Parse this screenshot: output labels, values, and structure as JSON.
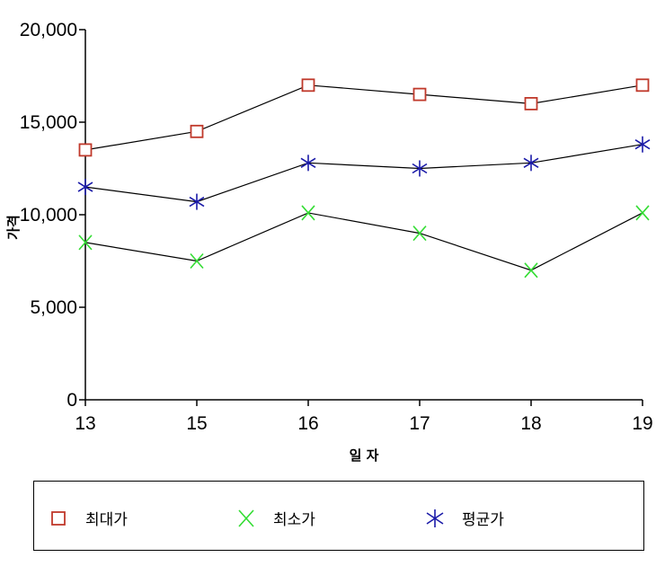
{
  "chart_data": {
    "type": "line",
    "categories": [
      "13",
      "15",
      "16",
      "17",
      "18",
      "19"
    ],
    "xlabel": "일 자",
    "ylabel": "가격",
    "ylim": [
      0,
      20000
    ],
    "yticks": [
      "0",
      "5,000",
      "10,000",
      "15,000",
      "20,000"
    ],
    "ytick_values": [
      0,
      5000,
      10000,
      15000,
      20000
    ],
    "grid": false,
    "legend_position": "bottom",
    "series": [
      {
        "name": "최대가",
        "values": [
          13500,
          14500,
          17000,
          16500,
          16000,
          17000
        ],
        "color": "#c0392b",
        "marker": "square"
      },
      {
        "name": "최소가",
        "values": [
          8500,
          7500,
          10100,
          9000,
          7000,
          10100
        ],
        "color": "#33dd33",
        "marker": "x"
      },
      {
        "name": "평균가",
        "values": [
          11500,
          10700,
          12800,
          12500,
          12800,
          13800
        ],
        "color": "#1a1aa8",
        "marker": "asterisk"
      }
    ]
  }
}
